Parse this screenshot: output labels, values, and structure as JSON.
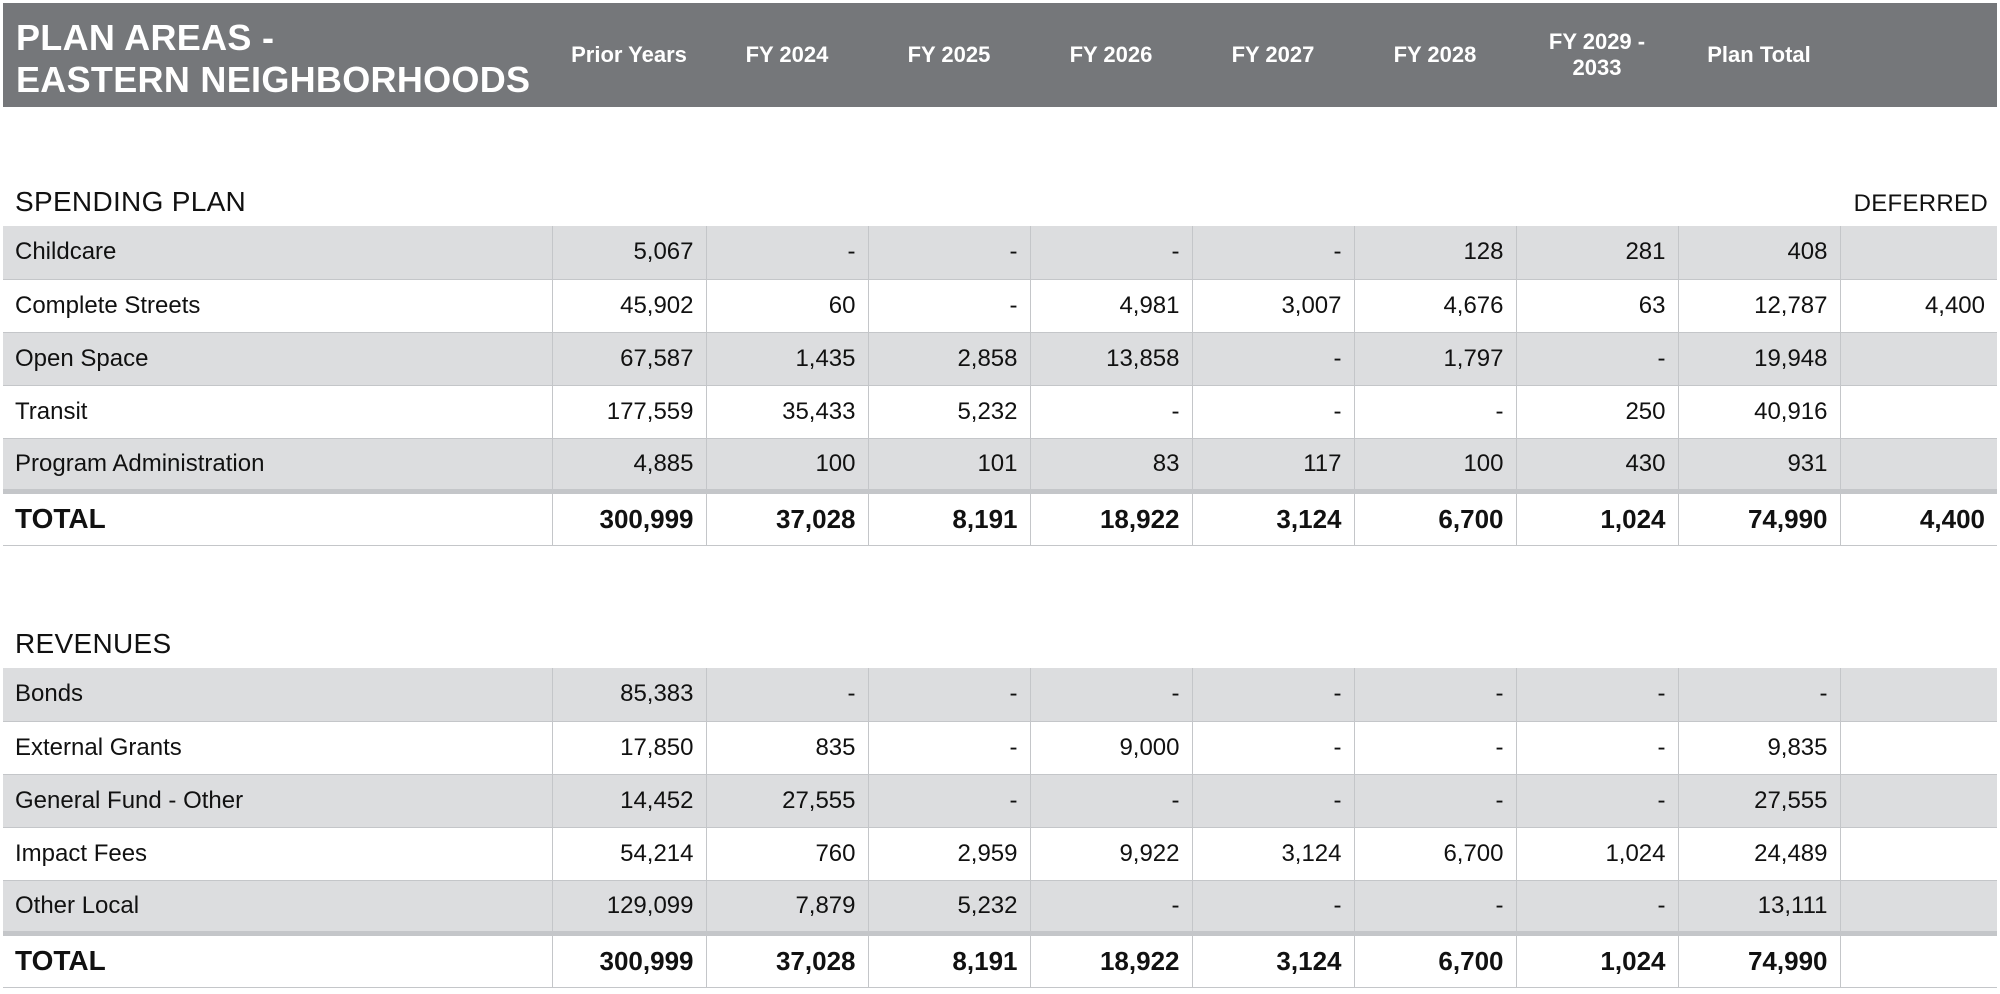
{
  "header": {
    "title_line1": "PLAN AREAS -",
    "title_line2": "EASTERN NEIGHBORHOODS",
    "columns": [
      "Prior Years",
      "FY 2024",
      "FY 2025",
      "FY 2026",
      "FY 2027",
      "FY 2028",
      "FY 2029 - 2033",
      "Plan Total"
    ],
    "column_fy2029_line1": "FY 2029 -",
    "column_fy2029_line2": "2033"
  },
  "spending": {
    "title": "SPENDING PLAN",
    "deferred_label": "DEFERRED",
    "rows": [
      {
        "label": "Childcare",
        "values": [
          "5,067",
          "-",
          "-",
          "-",
          "-",
          "128",
          "281",
          "408",
          ""
        ]
      },
      {
        "label": "Complete Streets",
        "values": [
          "45,902",
          "60",
          "-",
          "4,981",
          "3,007",
          "4,676",
          "63",
          "12,787",
          "4,400"
        ]
      },
      {
        "label": "Open Space",
        "values": [
          "67,587",
          "1,435",
          "2,858",
          "13,858",
          "-",
          "1,797",
          "-",
          "19,948",
          ""
        ]
      },
      {
        "label": "Transit",
        "values": [
          "177,559",
          "35,433",
          "5,232",
          "-",
          "-",
          "-",
          "250",
          "40,916",
          ""
        ]
      },
      {
        "label": "Program Administration",
        "values": [
          "4,885",
          "100",
          "101",
          "83",
          "117",
          "100",
          "430",
          "931",
          ""
        ]
      }
    ],
    "total": {
      "label": "TOTAL",
      "values": [
        "300,999",
        "37,028",
        "8,191",
        "18,922",
        "3,124",
        "6,700",
        "1,024",
        "74,990",
        "4,400"
      ]
    }
  },
  "revenues": {
    "title": "REVENUES",
    "rows": [
      {
        "label": "Bonds",
        "values": [
          "85,383",
          "-",
          "-",
          "-",
          "-",
          "-",
          "-",
          "-",
          ""
        ]
      },
      {
        "label": "External Grants",
        "values": [
          "17,850",
          "835",
          "-",
          "9,000",
          "-",
          "-",
          "-",
          "9,835",
          ""
        ]
      },
      {
        "label": "General Fund - Other",
        "values": [
          "14,452",
          "27,555",
          "-",
          "-",
          "-",
          "-",
          "-",
          "27,555",
          ""
        ]
      },
      {
        "label": "Impact Fees",
        "values": [
          "54,214",
          "760",
          "2,959",
          "9,922",
          "3,124",
          "6,700",
          "1,024",
          "24,489",
          ""
        ]
      },
      {
        "label": "Other Local",
        "values": [
          "129,099",
          "7,879",
          "5,232",
          "-",
          "-",
          "-",
          "-",
          "13,111",
          ""
        ]
      }
    ],
    "total": {
      "label": "TOTAL",
      "values": [
        "300,999",
        "37,028",
        "8,191",
        "18,922",
        "3,124",
        "6,700",
        "1,024",
        "74,990",
        ""
      ]
    }
  }
}
